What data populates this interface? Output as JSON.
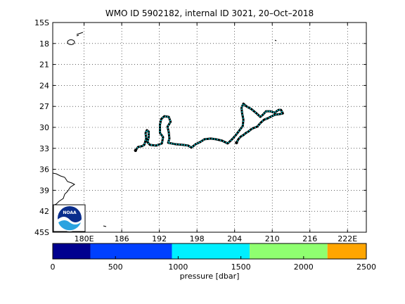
{
  "title": "WMO ID 5902182, internal ID 3021, 20–Oct–2018",
  "map": {
    "lat_ticks": [
      "15S",
      "18",
      "21",
      "24",
      "27",
      "30",
      "33",
      "36",
      "39",
      "42",
      "45S"
    ],
    "lon_ticks": [
      "180E",
      "186",
      "192",
      "198",
      "204",
      "210",
      "216",
      "222E"
    ],
    "lat_range": [
      -45,
      -15
    ],
    "lon_range": [
      175,
      225
    ],
    "grid": "dotted",
    "trajectory_colors": {
      "line": "#000000",
      "points": "#00e5ee"
    },
    "trajectory": [
      [
        188.2,
        -33.3
      ],
      [
        188.6,
        -32.8
      ],
      [
        189.2,
        -32.7
      ],
      [
        189.6,
        -32.5
      ],
      [
        189.9,
        -31.6
      ],
      [
        189.8,
        -30.8
      ],
      [
        190.0,
        -30.4
      ],
      [
        190.3,
        -30.6
      ],
      [
        190.3,
        -31.4
      ],
      [
        190.1,
        -32.1
      ],
      [
        190.5,
        -32.5
      ],
      [
        191.5,
        -32.6
      ],
      [
        192.4,
        -32.3
      ],
      [
        192.6,
        -31.4
      ],
      [
        192.1,
        -30.8
      ],
      [
        192.1,
        -29.6
      ],
      [
        192.3,
        -28.8
      ],
      [
        192.8,
        -28.4
      ],
      [
        193.5,
        -28.5
      ],
      [
        193.8,
        -29.2
      ],
      [
        193.3,
        -29.9
      ],
      [
        193.5,
        -30.7
      ],
      [
        193.6,
        -31.6
      ],
      [
        193.4,
        -32.2
      ],
      [
        194.5,
        -32.4
      ],
      [
        195.8,
        -32.5
      ],
      [
        196.6,
        -32.6
      ],
      [
        197.1,
        -32.9
      ],
      [
        197.8,
        -32.4
      ],
      [
        198.5,
        -32.1
      ],
      [
        199.2,
        -31.7
      ],
      [
        200.2,
        -31.6
      ],
      [
        201.0,
        -31.7
      ],
      [
        202.0,
        -31.9
      ],
      [
        202.9,
        -32.3
      ],
      [
        203.6,
        -31.7
      ],
      [
        204.2,
        -31.1
      ],
      [
        204.8,
        -30.4
      ],
      [
        205.3,
        -29.8
      ],
      [
        205.4,
        -28.9
      ],
      [
        205.2,
        -28.0
      ],
      [
        205.1,
        -27.2
      ],
      [
        205.4,
        -26.6
      ],
      [
        205.9,
        -27.0
      ],
      [
        206.7,
        -27.4
      ],
      [
        207.5,
        -28.0
      ],
      [
        208.1,
        -28.5
      ],
      [
        208.5,
        -28.2
      ],
      [
        209.0,
        -27.7
      ],
      [
        209.7,
        -27.7
      ],
      [
        210.4,
        -27.9
      ],
      [
        211.0,
        -27.5
      ],
      [
        211.4,
        -27.5
      ],
      [
        211.7,
        -28.0
      ],
      [
        211.2,
        -28.1
      ],
      [
        210.4,
        -28.2
      ],
      [
        209.7,
        -28.5
      ],
      [
        209.3,
        -28.7
      ],
      [
        208.7,
        -28.9
      ],
      [
        208.2,
        -29.3
      ],
      [
        207.6,
        -29.9
      ],
      [
        207.0,
        -30.1
      ],
      [
        206.6,
        -30.3
      ],
      [
        206.2,
        -30.6
      ],
      [
        205.8,
        -30.8
      ],
      [
        205.4,
        -31.1
      ],
      [
        205.0,
        -31.3
      ],
      [
        204.6,
        -31.7
      ],
      [
        204.3,
        -32.2
      ]
    ]
  },
  "colorbar": {
    "label": "pressure [dbar]",
    "ticks": [
      "0",
      "500",
      "1000",
      "1500",
      "2000",
      "2500"
    ],
    "segments": [
      {
        "from": 0,
        "to": 300,
        "color": "#00008f"
      },
      {
        "from": 300,
        "to": 950,
        "color": "#0040ff"
      },
      {
        "from": 950,
        "to": 1570,
        "color": "#00efff"
      },
      {
        "from": 1570,
        "to": 2190,
        "color": "#8fff70"
      },
      {
        "from": 2190,
        "to": 2500,
        "color": "#ffa500"
      }
    ],
    "range": [
      0,
      2500
    ]
  },
  "logo": {
    "text": "NOAA"
  }
}
